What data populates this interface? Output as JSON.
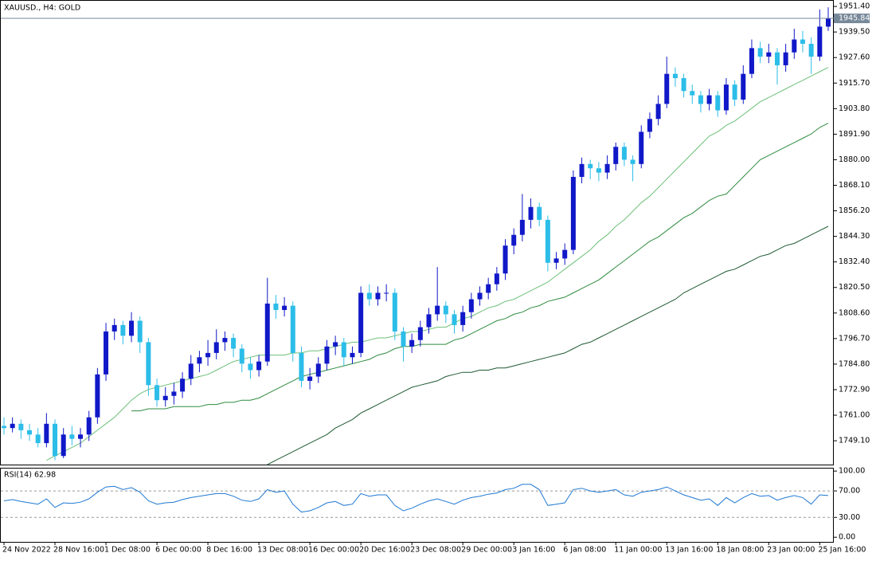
{
  "chart_data": {
    "type": "candlestick",
    "title": "XAUUSD., H4:  GOLD",
    "ylim": [
      1738,
      1954.4
    ],
    "yticks": [
      {
        "value": 1951.4,
        "label": "1951.40"
      },
      {
        "value": 1939.5,
        "label": "1939.50"
      },
      {
        "value": 1927.6,
        "label": "1927.60"
      },
      {
        "value": 1915.7,
        "label": "1915.70"
      },
      {
        "value": 1903.8,
        "label": "1903.80"
      },
      {
        "value": 1891.9,
        "label": "1891.90"
      },
      {
        "value": 1880,
        "label": "1880.00"
      },
      {
        "value": 1868.1,
        "label": "1868.10"
      },
      {
        "value": 1856.2,
        "label": "1856.20"
      },
      {
        "value": 1844.3,
        "label": "1844.30"
      },
      {
        "value": 1832.4,
        "label": "1832.40"
      },
      {
        "value": 1820.5,
        "label": "1820.50"
      },
      {
        "value": 1808.6,
        "label": "1808.60"
      },
      {
        "value": 1796.7,
        "label": "1796.70"
      },
      {
        "value": 1784.8,
        "label": "1784.80"
      },
      {
        "value": 1772.9,
        "label": "1772.90"
      },
      {
        "value": 1761,
        "label": "1761.00"
      },
      {
        "value": 1749.1,
        "label": "1749.10"
      }
    ],
    "last_price": 1945.84,
    "last_price_color": "#778899",
    "up_color": "#1018c8",
    "down_color": "#2cbde8",
    "categories": [
      "24 Nov 2022",
      null,
      null,
      null,
      null,
      null,
      "28 Nov 16:00",
      null,
      null,
      null,
      null,
      null,
      "1 Dec 08:00",
      null,
      null,
      null,
      null,
      null,
      "6 Dec 00:00",
      null,
      null,
      null,
      null,
      null,
      "8 Dec 16:00",
      null,
      null,
      null,
      null,
      null,
      "13 Dec 08:00",
      null,
      null,
      null,
      null,
      null,
      "16 Dec 00:00",
      null,
      null,
      null,
      null,
      null,
      "20 Dec 16:00",
      null,
      null,
      null,
      null,
      null,
      "23 Dec 08:00",
      null,
      null,
      null,
      null,
      null,
      "29 Dec 00:00",
      null,
      null,
      null,
      null,
      null,
      "3 Jan 16:00",
      null,
      null,
      null,
      null,
      null,
      "6 Jan 08:00",
      null,
      null,
      null,
      null,
      null,
      "11 Jan 00:00",
      null,
      null,
      null,
      null,
      null,
      "13 Jan 16:00",
      null,
      null,
      null,
      null,
      null,
      "18 Jan 08:00",
      null,
      null,
      null,
      null,
      null,
      "23 Jan 00:00",
      null,
      null,
      null,
      null,
      null,
      "25 Jan 16:00",
      null
    ],
    "ohlc": [
      [
        1756,
        1760,
        1752,
        1755
      ],
      [
        1755,
        1760,
        1753,
        1757
      ],
      [
        1757,
        1759,
        1750,
        1754
      ],
      [
        1754,
        1757,
        1749,
        1752
      ],
      [
        1752,
        1755,
        1746,
        1748
      ],
      [
        1748,
        1762,
        1746,
        1757
      ],
      [
        1757,
        1759,
        1740,
        1742
      ],
      [
        1742,
        1755,
        1741,
        1752
      ],
      [
        1752,
        1756,
        1747,
        1750
      ],
      [
        1750,
        1755,
        1746,
        1752
      ],
      [
        1752,
        1763,
        1749,
        1760
      ],
      [
        1760,
        1783,
        1757,
        1780
      ],
      [
        1780,
        1804,
        1777,
        1800
      ],
      [
        1800,
        1806,
        1796,
        1803
      ],
      [
        1803,
        1805,
        1794,
        1798
      ],
      [
        1798,
        1809,
        1795,
        1805
      ],
      [
        1805,
        1807,
        1790,
        1795
      ],
      [
        1795,
        1797,
        1770,
        1775
      ],
      [
        1775,
        1778,
        1765,
        1768
      ],
      [
        1768,
        1774,
        1765,
        1770
      ],
      [
        1770,
        1776,
        1766,
        1772
      ],
      [
        1772,
        1781,
        1769,
        1778
      ],
      [
        1778,
        1789,
        1775,
        1785
      ],
      [
        1785,
        1791,
        1781,
        1788
      ],
      [
        1788,
        1796,
        1784,
        1790
      ],
      [
        1790,
        1801,
        1787,
        1795
      ],
      [
        1795,
        1800,
        1791,
        1797
      ],
      [
        1797,
        1799,
        1788,
        1792
      ],
      [
        1792,
        1794,
        1781,
        1785
      ],
      [
        1785,
        1788,
        1778,
        1782
      ],
      [
        1782,
        1789,
        1779,
        1786
      ],
      [
        1786,
        1825,
        1784,
        1813
      ],
      [
        1813,
        1817,
        1806,
        1810
      ],
      [
        1810,
        1816,
        1807,
        1812
      ],
      [
        1812,
        1814,
        1786,
        1790
      ],
      [
        1790,
        1793,
        1774,
        1777
      ],
      [
        1777,
        1783,
        1773,
        1779
      ],
      [
        1779,
        1788,
        1776,
        1785
      ],
      [
        1785,
        1796,
        1782,
        1793
      ],
      [
        1793,
        1798,
        1789,
        1795
      ],
      [
        1795,
        1797,
        1784,
        1788
      ],
      [
        1788,
        1793,
        1785,
        1790
      ],
      [
        1790,
        1821,
        1788,
        1818
      ],
      [
        1818,
        1822,
        1812,
        1815
      ],
      [
        1815,
        1821,
        1812,
        1818
      ],
      [
        1818,
        1822,
        1814,
        1818
      ],
      [
        1818,
        1820,
        1796,
        1800
      ],
      [
        1800,
        1802,
        1786,
        1793
      ],
      [
        1793,
        1799,
        1790,
        1796
      ],
      [
        1796,
        1805,
        1793,
        1802
      ],
      [
        1802,
        1811,
        1799,
        1808
      ],
      [
        1808,
        1830,
        1805,
        1812
      ],
      [
        1812,
        1814,
        1804,
        1808
      ],
      [
        1808,
        1810,
        1799,
        1803
      ],
      [
        1803,
        1812,
        1800,
        1809
      ],
      [
        1809,
        1818,
        1806,
        1815
      ],
      [
        1815,
        1821,
        1812,
        1818
      ],
      [
        1818,
        1825,
        1815,
        1822
      ],
      [
        1822,
        1830,
        1819,
        1827
      ],
      [
        1827,
        1843,
        1824,
        1840
      ],
      [
        1840,
        1848,
        1836,
        1845
      ],
      [
        1845,
        1864,
        1842,
        1852
      ],
      [
        1852,
        1862,
        1848,
        1858
      ],
      [
        1858,
        1860,
        1849,
        1852
      ],
      [
        1852,
        1854,
        1828,
        1832
      ],
      [
        1832,
        1837,
        1829,
        1834
      ],
      [
        1834,
        1841,
        1831,
        1838
      ],
      [
        1838,
        1875,
        1836,
        1872
      ],
      [
        1872,
        1881,
        1869,
        1878
      ],
      [
        1878,
        1880,
        1871,
        1876
      ],
      [
        1876,
        1879,
        1870,
        1874
      ],
      [
        1874,
        1882,
        1871,
        1878
      ],
      [
        1878,
        1888,
        1875,
        1886
      ],
      [
        1886,
        1888,
        1877,
        1880
      ],
      [
        1880,
        1882,
        1870,
        1878
      ],
      [
        1878,
        1896,
        1876,
        1893
      ],
      [
        1893,
        1902,
        1890,
        1899
      ],
      [
        1899,
        1910,
        1896,
        1906
      ],
      [
        1906,
        1928,
        1904,
        1920
      ],
      [
        1920,
        1923,
        1914,
        1918
      ],
      [
        1918,
        1920,
        1909,
        1912
      ],
      [
        1912,
        1915,
        1906,
        1910
      ],
      [
        1910,
        1912,
        1902,
        1906
      ],
      [
        1906,
        1913,
        1903,
        1910
      ],
      [
        1910,
        1912,
        1900,
        1903
      ],
      [
        1903,
        1918,
        1901,
        1915
      ],
      [
        1915,
        1917,
        1905,
        1908
      ],
      [
        1908,
        1924,
        1906,
        1920
      ],
      [
        1920,
        1936,
        1918,
        1932
      ],
      [
        1932,
        1935,
        1925,
        1928
      ],
      [
        1928,
        1934,
        1925,
        1930
      ],
      [
        1930,
        1932,
        1915,
        1924
      ],
      [
        1924,
        1934,
        1921,
        1930
      ],
      [
        1930,
        1941,
        1927,
        1936
      ],
      [
        1936,
        1940,
        1930,
        1934
      ],
      [
        1934,
        1937,
        1920,
        1928
      ],
      [
        1928,
        1950,
        1926,
        1942
      ],
      [
        1942,
        1951,
        1940,
        1945.84
      ]
    ],
    "lines": [
      {
        "color": "#6cc078",
        "values": [
          null,
          null,
          null,
          null,
          null,
          1740,
          1742,
          1744,
          1746,
          1748,
          1751,
          1754,
          1757,
          1760,
          1764,
          1768,
          1771,
          1773,
          1774,
          1775,
          1776,
          1777,
          1778,
          1779,
          1780,
          1782,
          1784,
          1786,
          1787,
          1788,
          1789,
          1789,
          1789,
          1789,
          1790,
          1790,
          1791,
          1791,
          1792,
          1793,
          1794,
          1795,
          1795,
          1796,
          1797,
          1797,
          1798,
          1799,
          1800,
          1800,
          1801,
          1802,
          1802,
          1804,
          1806,
          1807,
          1809,
          1811,
          1812,
          1814,
          1815,
          1817,
          1819,
          1821,
          1823,
          1826,
          1829,
          1832,
          1835,
          1838,
          1842,
          1845,
          1849,
          1852,
          1856,
          1860,
          1863,
          1867,
          1871,
          1875,
          1879,
          1883,
          1887,
          1891,
          1893,
          1896,
          1898,
          1901,
          1904,
          1907,
          1909,
          1911,
          1913,
          1915,
          1917,
          1919,
          1921,
          1923
        ]
      },
      {
        "color": "#2e8b3e",
        "values": [
          null,
          null,
          null,
          null,
          null,
          null,
          null,
          null,
          null,
          null,
          null,
          null,
          null,
          null,
          null,
          1763,
          1763,
          1764,
          1764,
          1764,
          1765,
          1765,
          1765,
          1765,
          1766,
          1766,
          1767,
          1767,
          1768,
          1768,
          1769,
          1771,
          1773,
          1775,
          1777,
          1779,
          1780,
          1781,
          1782,
          1783,
          1784,
          1785,
          1786,
          1787,
          1789,
          1790,
          1792,
          1793,
          1793,
          1794,
          1794,
          1794,
          1794,
          1796,
          1797,
          1799,
          1801,
          1803,
          1805,
          1806,
          1808,
          1809,
          1811,
          1812,
          1814,
          1815,
          1816,
          1818,
          1820,
          1822,
          1824,
          1827,
          1830,
          1833,
          1836,
          1839,
          1842,
          1844,
          1847,
          1850,
          1853,
          1855,
          1858,
          1861,
          1863,
          1864,
          1868,
          1872,
          1876,
          1880,
          1882,
          1884,
          1886,
          1888,
          1890,
          1892,
          1895,
          1897
        ]
      },
      {
        "color": "#1e5a32",
        "values": [
          null,
          null,
          null,
          null,
          null,
          null,
          null,
          null,
          null,
          null,
          null,
          null,
          null,
          null,
          null,
          null,
          null,
          null,
          null,
          null,
          null,
          null,
          null,
          null,
          null,
          null,
          null,
          null,
          null,
          null,
          null,
          1738,
          1740,
          1742,
          1744,
          1746,
          1748,
          1750,
          1752,
          1755,
          1757,
          1759,
          1762,
          1764,
          1766,
          1768,
          1770,
          1772,
          1774,
          1775,
          1776,
          1777,
          1779,
          1780,
          1781,
          1781,
          1782,
          1782,
          1783,
          1783,
          1784,
          1785,
          1786,
          1787,
          1788,
          1789,
          1790,
          1792,
          1794,
          1795,
          1797,
          1799,
          1801,
          1803,
          1805,
          1807,
          1809,
          1811,
          1813,
          1815,
          1818,
          1820,
          1822,
          1824,
          1826,
          1828,
          1829,
          1831,
          1833,
          1835,
          1836,
          1838,
          1840,
          1841,
          1843,
          1845,
          1847,
          1849
        ]
      }
    ],
    "rsi": {
      "label": "RSI(14) 62.98",
      "color": "#1e78d2",
      "ylim": [
        -7,
        105
      ],
      "yticks": [
        {
          "value": 100,
          "label": "100.00"
        },
        {
          "value": 70,
          "label": "70.00"
        },
        {
          "value": 30,
          "label": "30.00"
        },
        {
          "value": 0,
          "label": "0.00"
        }
      ],
      "levels": [
        70,
        30
      ],
      "values": [
        55,
        57,
        54,
        52,
        50,
        58,
        45,
        52,
        51,
        53,
        58,
        68,
        76,
        77,
        72,
        75,
        68,
        55,
        50,
        52,
        53,
        57,
        60,
        62,
        64,
        66,
        66,
        62,
        56,
        54,
        58,
        72,
        68,
        70,
        50,
        38,
        40,
        45,
        52,
        54,
        48,
        50,
        66,
        62,
        64,
        64,
        48,
        40,
        44,
        50,
        55,
        58,
        54,
        50,
        56,
        60,
        62,
        65,
        67,
        72,
        74,
        80,
        80,
        72,
        48,
        50,
        52,
        72,
        74,
        70,
        68,
        70,
        72,
        64,
        62,
        68,
        70,
        72,
        76,
        70,
        64,
        60,
        56,
        58,
        48,
        60,
        52,
        60,
        66,
        62,
        63,
        56,
        60,
        63,
        60,
        50,
        64,
        62.98
      ]
    }
  }
}
